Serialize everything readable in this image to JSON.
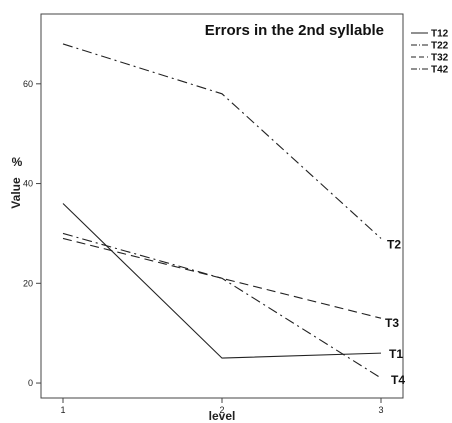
{
  "chart_data": {
    "type": "line",
    "title": "Errors in the 2nd syllable",
    "xlabel": "level",
    "ylabel": "Value",
    "yunit": "%",
    "x": [
      1,
      2,
      3
    ],
    "x_tick_labels": [
      "1",
      "2",
      "3"
    ],
    "xlim": [
      0.9,
      3.1
    ],
    "ylim": [
      -3,
      74
    ],
    "y_ticks": [
      0,
      20,
      40,
      60
    ],
    "grid": false,
    "legend_position": "outside-top-right",
    "series": [
      {
        "name": "T12",
        "end_label": "T1",
        "dash": "solid",
        "values": [
          36,
          5,
          6
        ]
      },
      {
        "name": "T22",
        "end_label": "T2",
        "dash": "dashdot",
        "values": [
          68,
          58,
          29
        ]
      },
      {
        "name": "T32",
        "end_label": "T3",
        "dash": "dashed",
        "values": [
          29,
          21,
          13
        ]
      },
      {
        "name": "T42",
        "end_label": "T4",
        "dash": "dashdot",
        "values": [
          30,
          21,
          1
        ]
      }
    ]
  }
}
